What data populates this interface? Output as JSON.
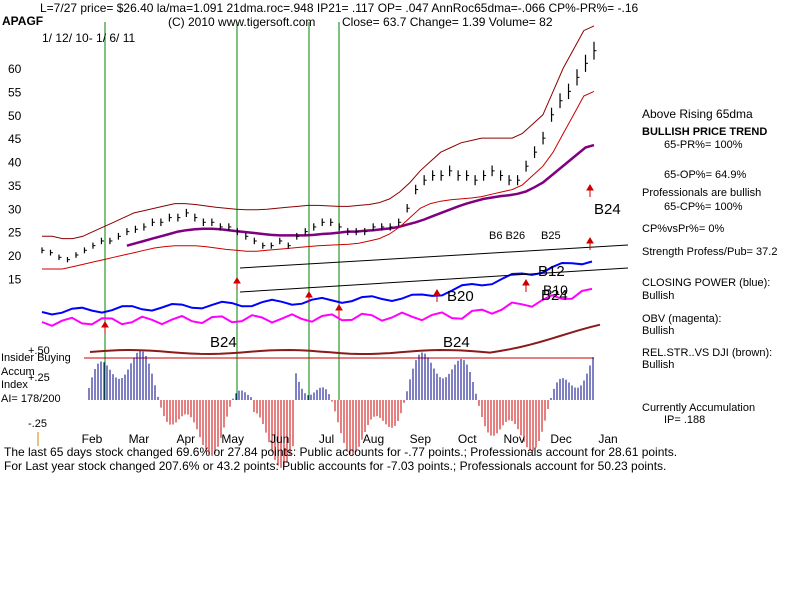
{
  "header": {
    "line1": "L=7/27  price= $26.40  la/ma=1.091 21dma.roc=.948 IP21= .117 OP= .047 AnnRoc65dma=-.066 CP%-PR%= -.16",
    "ticker": "APAGF",
    "copyright": "(C) 2010 www.tigersoft.com",
    "stats": "Close=  63.7  Change= 1.39 Volume= 82",
    "date_range": "1/ 12/ 10- 1/ 6/ 11"
  },
  "right_panel": {
    "above_rising": "Above Rising 65dma",
    "trend_title": "BULLISH PRICE TREND",
    "pr65": "65-PR%= 100%",
    "op65": "65-OP%= 64.9%",
    "pros_bullish": "Professionals are bullish",
    "cp65": "65-CP%= 100%",
    "cp_vs_pr": "CP%vsPr%=  0%",
    "strength": "Strength Profess/Pub= 37.2",
    "closing_power_title": "CLOSING POWER (blue):",
    "closing_power_value": "Bullish",
    "obv_title": "OBV (magenta):",
    "obv_value": "Bullish",
    "relstr_title": "REL.STR..VS DJI (brown):",
    "relstr_value": "Bullish",
    "accum_title": "Currently Accumulation",
    "accum_ip": "IP=  .188"
  },
  "indicator_labels": {
    "insider": "Insider Buying",
    "accum": "Accum",
    "index": "Index",
    "ai": "AI= 178/200",
    "plus50": "+.50",
    "plus25": "+.25",
    "minus25": "-.25"
  },
  "signals": {
    "b24_price": "B24",
    "b6_b26": "B6 B26",
    "b25": "B25",
    "b10": "B10",
    "b12": "B12",
    "b20": "B20",
    "b24_cp": "B24",
    "b24_acc_left": "B24",
    "b24_acc_mid": "B24"
  },
  "footer": {
    "line1": "The last 65 days stock changed  69.6% or  27.84 points:  Public accounts for  -.77 points.;  Professionals account for  28.61 points.",
    "line2": "For Last year stock changed  207.6% or  43.2 points:  Public accounts for -7.03 points.;  Professionals account for  50.23 points."
  },
  "chart_data": {
    "type": "line",
    "title": "APAGF",
    "date_range": "1/ 12/ 10- 1/ 6/ 11",
    "x_ticks": [
      "Feb",
      "Mar",
      "Apr",
      "May",
      "Jun",
      "Jul",
      "Aug",
      "Sep",
      "Oct",
      "Nov",
      "Dec",
      "Jan"
    ],
    "y_ticks": [
      15,
      20,
      25,
      30,
      35,
      40,
      45,
      50,
      55,
      60
    ],
    "ylim": [
      12,
      66
    ],
    "series": [
      {
        "name": "price",
        "color": "#000000",
        "values": [
          21,
          20.5,
          19.5,
          19,
          20,
          21,
          22,
          23,
          23,
          24,
          25,
          25.5,
          26,
          27,
          27,
          28,
          28,
          29,
          28,
          27,
          27,
          26,
          26,
          25,
          24,
          23,
          22,
          22,
          23,
          22,
          24,
          25,
          26,
          27,
          27,
          26,
          25,
          25,
          25,
          26,
          26,
          26,
          27,
          30,
          34,
          36,
          37,
          37,
          38,
          37,
          37,
          36,
          37,
          38,
          37,
          36,
          36,
          39,
          42,
          45,
          50,
          53,
          55,
          58,
          61,
          63.7
        ]
      },
      {
        "name": "65dma",
        "color": "#800080",
        "values": [
          null,
          null,
          null,
          null,
          null,
          null,
          null,
          null,
          null,
          null,
          22,
          22.5,
          23,
          23.5,
          24,
          24.5,
          25,
          25.3,
          25.5,
          25.6,
          25.6,
          25.5,
          25.3,
          25.1,
          24.9,
          24.7,
          24.5,
          24.3,
          24.2,
          24.2,
          24.2,
          24.2,
          24.3,
          24.5,
          24.6,
          24.8,
          25,
          25,
          25.2,
          25.3,
          25.5,
          25.7,
          26,
          26.5,
          27,
          27.6,
          28.3,
          29,
          29.7,
          30.4,
          31,
          31.5,
          32,
          32.3,
          32.6,
          32.8,
          33.1,
          33.6,
          34.5,
          35.5,
          37,
          38.5,
          40,
          41.5,
          43,
          43.5
        ]
      },
      {
        "name": "upper band",
        "color": "#8b0000",
        "values": [
          24,
          24,
          23.5,
          23.5,
          24,
          25,
          26,
          27,
          28,
          29,
          29.5,
          30,
          30.5,
          31,
          31,
          30.8,
          30.5,
          30.2,
          30,
          29.8,
          29.7,
          29.7,
          29.8,
          30,
          30.2,
          30.4,
          30.6,
          30.6,
          30.5,
          30.4,
          30.4,
          30.6,
          30.8,
          31.2,
          32,
          33.5,
          35.5,
          38,
          40,
          42,
          43,
          44,
          44.5,
          45,
          45,
          45,
          45,
          46,
          48,
          50,
          55,
          60,
          64,
          68,
          69
        ]
      },
      {
        "name": "lower band",
        "color": "#cc0000",
        "values": [
          17,
          17,
          17,
          17.5,
          18,
          18.5,
          19,
          19.5,
          20,
          20.5,
          21,
          21.5,
          21.8,
          22,
          22,
          22,
          21.8,
          21.5,
          21.2,
          21,
          20.8,
          20.8,
          21,
          21.2,
          21.4,
          21.6,
          21.8,
          22,
          22.1,
          22.2,
          22.3,
          22.5,
          23,
          23.5,
          24.5,
          26,
          28,
          30,
          31,
          31.5,
          31.8,
          32,
          32.2,
          32.5,
          33,
          33.5,
          34,
          35,
          37,
          39,
          42,
          46,
          50,
          54,
          55
        ]
      }
    ]
  },
  "colors": {
    "price": "#000000",
    "ma65": "#800080",
    "bands": "#cc0000",
    "closing_power": "#0000ff",
    "obv": "#ff00ff",
    "relstr": "#8b1a1a",
    "accum_pos": "#00008b",
    "accum_neg": "#cc0000",
    "signal_lines": "#008000"
  }
}
